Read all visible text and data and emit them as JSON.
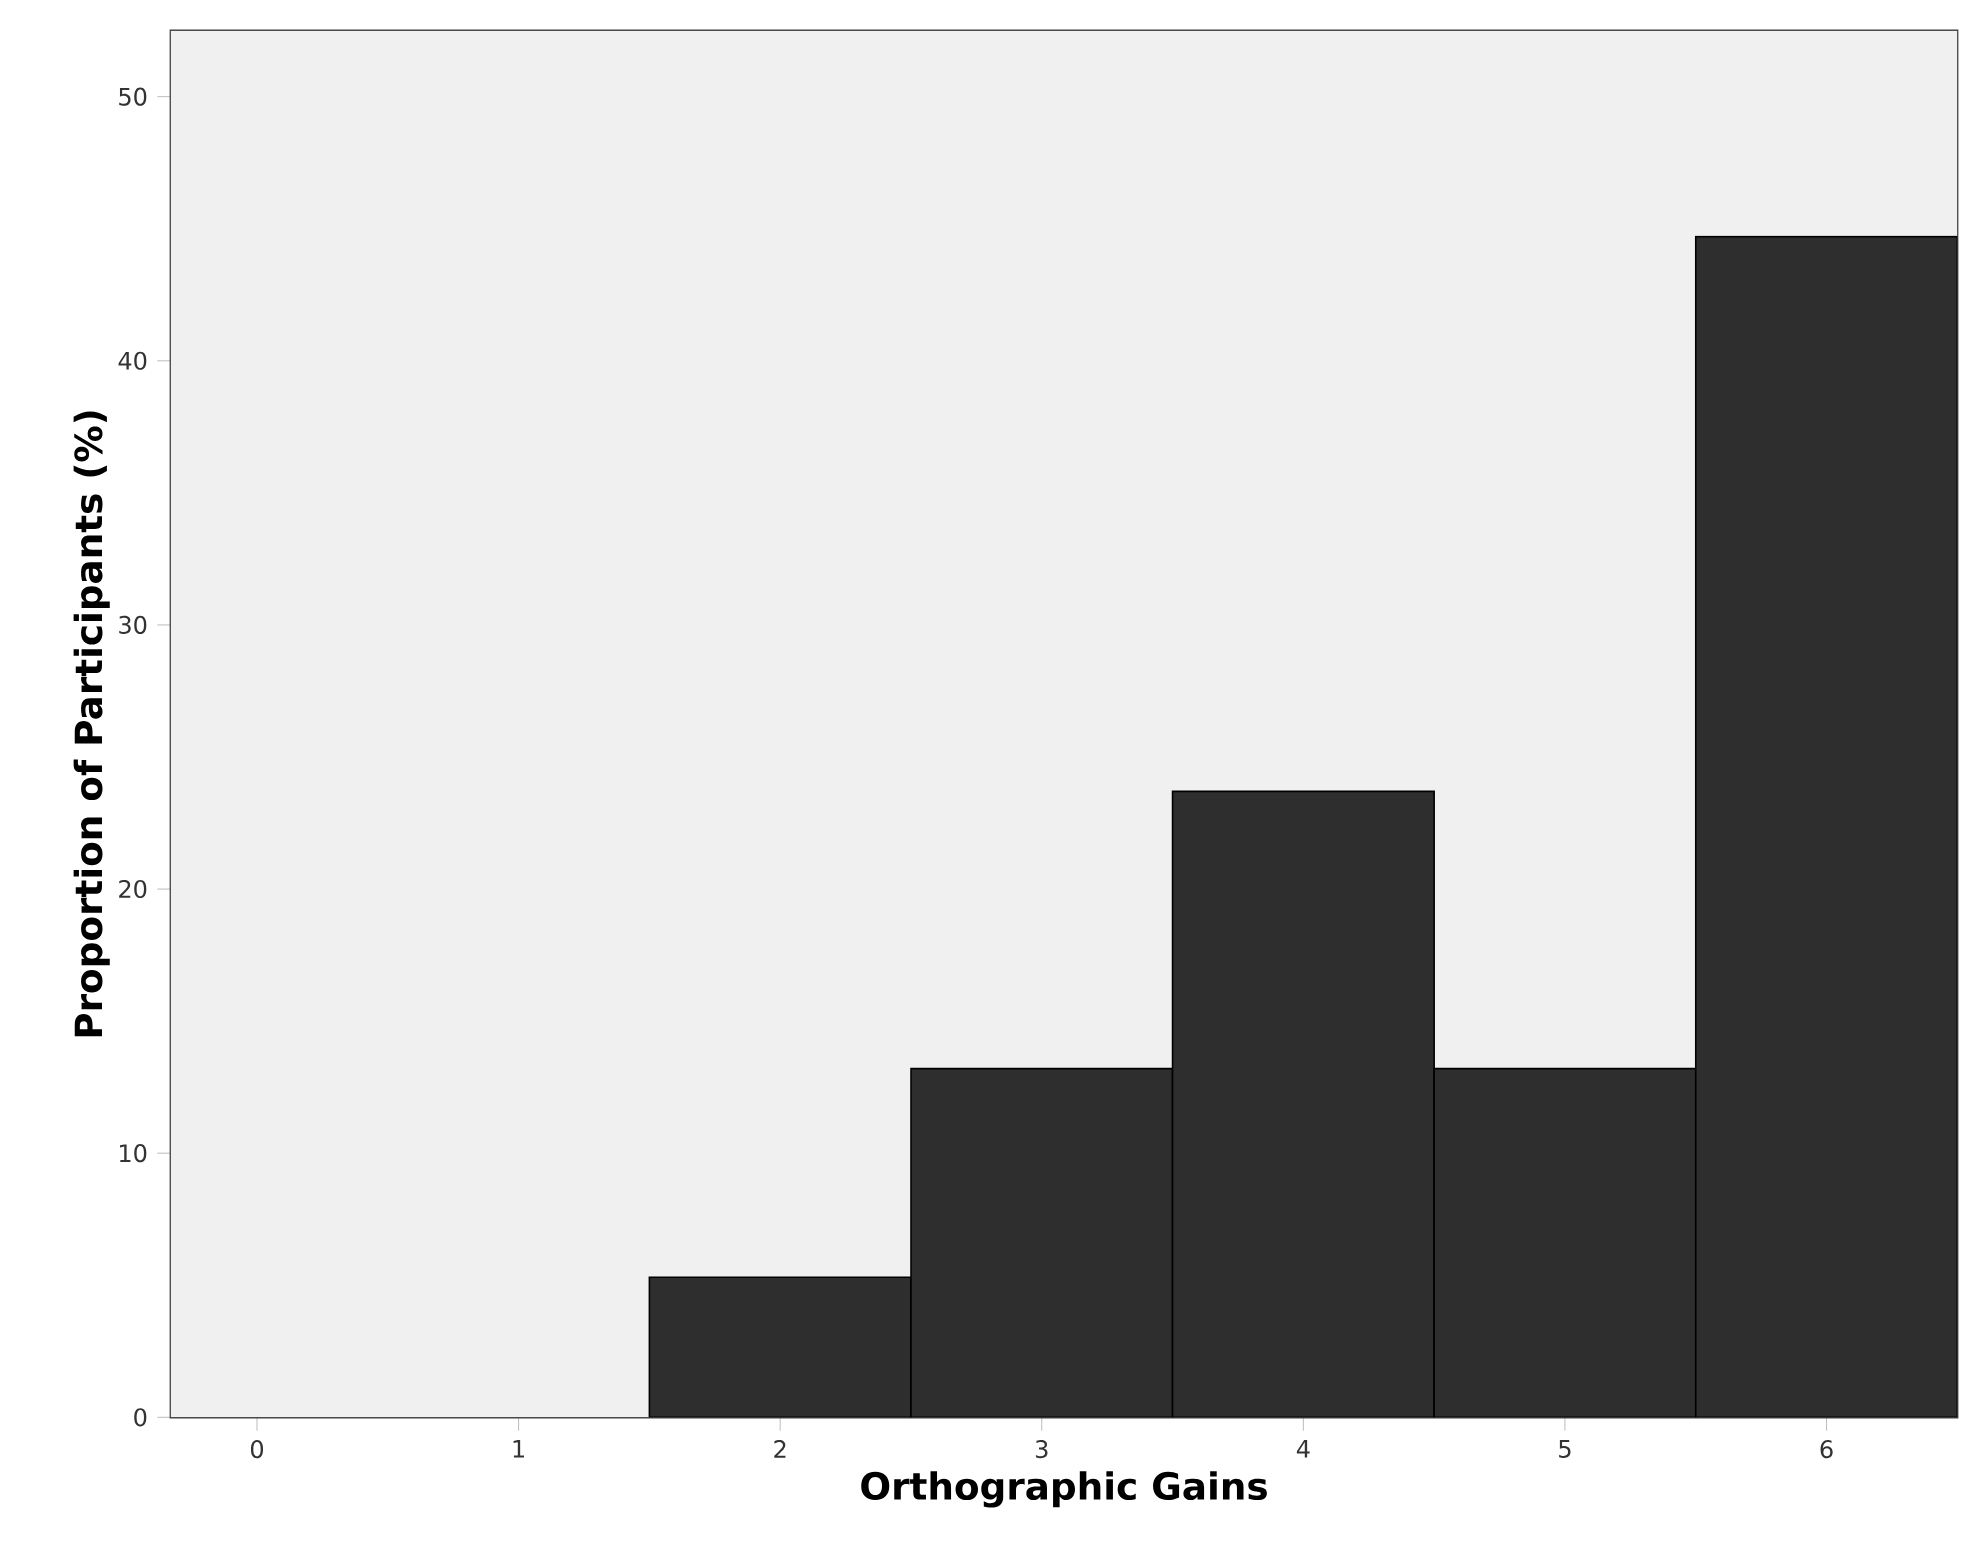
{
  "chart_data": {
    "type": "histogram",
    "xlabel": "Orthographic Gains",
    "ylabel": "Proportion of Participants (%)",
    "bins": [
      1.5,
      2.5,
      3.5,
      4.5,
      5.5,
      6.5
    ],
    "values": [
      5.3,
      13.2,
      23.7,
      13.2,
      44.7
    ],
    "color": "#2e2e2e",
    "xlim": [
      -0.33,
      6.5
    ],
    "ylim": [
      0,
      52.5
    ],
    "xticks": [
      0,
      1,
      2,
      3,
      4,
      5,
      6
    ],
    "yticks": [
      0,
      10,
      20,
      30,
      40,
      50
    ]
  }
}
